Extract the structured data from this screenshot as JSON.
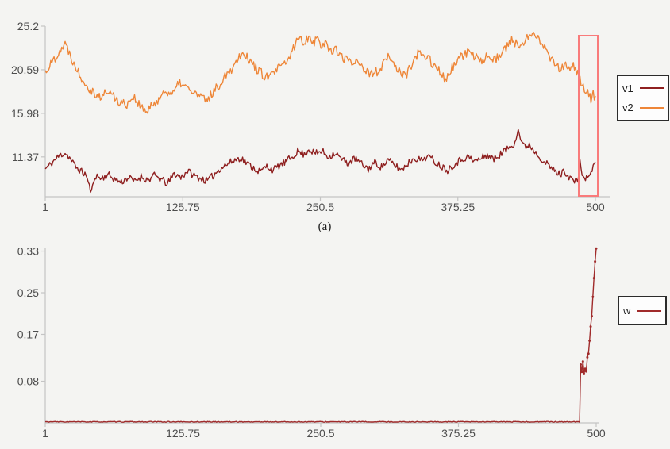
{
  "page": {
    "background_color": "#f4f4f2",
    "axis_color": "#c4c4c4",
    "tick_label_color": "#4d4d4d",
    "legend_border_color": "#2b2b2b",
    "legend_background_color": "#fdfdfd"
  },
  "chart_data": [
    {
      "id": "top-chart",
      "type": "line",
      "caption": "(a)",
      "xlim": [
        1,
        500
      ],
      "ylim": [
        7.16,
        25.2
      ],
      "x_ticks": [
        1,
        125.75,
        250.5,
        375.25,
        500
      ],
      "x_tick_labels": [
        "1",
        "125.75",
        "250.5",
        "375.25",
        "500"
      ],
      "y_ticks": [
        11.37,
        15.98,
        20.59,
        25.2
      ],
      "y_tick_labels": [
        "11.37",
        "15.98",
        "20.59",
        "25.2"
      ],
      "grid": false,
      "legend_position": "right-outside",
      "legend": [
        {
          "label": "v1",
          "color": "#8e1f1f"
        },
        {
          "label": "v2",
          "color": "#ee8638"
        }
      ],
      "highlight_box": {
        "x_start": 484,
        "x_end": 503,
        "y_top": 24.3,
        "y_bottom": 7.16,
        "color": "#f97b7b"
      },
      "series": [
        {
          "name": "v1",
          "color": "#8e1f1f",
          "noise_amplitude": 0.38,
          "seed": 11,
          "markers": false,
          "anchors": [
            [
              1,
              10.1
            ],
            [
              5,
              10.5
            ],
            [
              10,
              11.1
            ],
            [
              15,
              11.6
            ],
            [
              19,
              11.8
            ],
            [
              23,
              11.3
            ],
            [
              28,
              10.4
            ],
            [
              34,
              9.8
            ],
            [
              38,
              9.5
            ],
            [
              41,
              8.2
            ],
            [
              43,
              7.6
            ],
            [
              46,
              9.4
            ],
            [
              52,
              9.1
            ],
            [
              58,
              9.5
            ],
            [
              64,
              9.0
            ],
            [
              70,
              8.7
            ],
            [
              76,
              9.2
            ],
            [
              82,
              8.8
            ],
            [
              88,
              9.3
            ],
            [
              94,
              8.9
            ],
            [
              100,
              9.4
            ],
            [
              106,
              9.0
            ],
            [
              112,
              8.5
            ],
            [
              118,
              9.6
            ],
            [
              124,
              9.2
            ],
            [
              130,
              9.9
            ],
            [
              136,
              9.4
            ],
            [
              142,
              9.1
            ],
            [
              148,
              8.8
            ],
            [
              154,
              9.5
            ],
            [
              160,
              10.2
            ],
            [
              166,
              10.6
            ],
            [
              172,
              11.0
            ],
            [
              178,
              11.3
            ],
            [
              184,
              10.7
            ],
            [
              190,
              10.2
            ],
            [
              196,
              9.8
            ],
            [
              202,
              10.4
            ],
            [
              208,
              10.0
            ],
            [
              214,
              10.5
            ],
            [
              220,
              10.9
            ],
            [
              226,
              11.5
            ],
            [
              230,
              12.0
            ],
            [
              236,
              11.6
            ],
            [
              240,
              12.2
            ],
            [
              246,
              11.7
            ],
            [
              252,
              12.0
            ],
            [
              258,
              11.4
            ],
            [
              264,
              11.8
            ],
            [
              270,
              11.1
            ],
            [
              276,
              10.7
            ],
            [
              282,
              11.2
            ],
            [
              288,
              10.6
            ],
            [
              294,
              10.1
            ],
            [
              300,
              10.8
            ],
            [
              306,
              10.3
            ],
            [
              312,
              11.0
            ],
            [
              318,
              10.5
            ],
            [
              324,
              10.0
            ],
            [
              330,
              10.7
            ],
            [
              336,
              11.3
            ],
            [
              342,
              11.0
            ],
            [
              348,
              11.5
            ],
            [
              354,
              10.9
            ],
            [
              360,
              10.4
            ],
            [
              366,
              10.0
            ],
            [
              372,
              10.6
            ],
            [
              378,
              11.1
            ],
            [
              384,
              11.4
            ],
            [
              390,
              10.9
            ],
            [
              396,
              11.2
            ],
            [
              402,
              11.6
            ],
            [
              408,
              11.1
            ],
            [
              414,
              11.7
            ],
            [
              420,
              12.2
            ],
            [
              426,
              12.8
            ],
            [
              430,
              14.2
            ],
            [
              433,
              13.0
            ],
            [
              436,
              12.4
            ],
            [
              440,
              12.7
            ],
            [
              444,
              12.1
            ],
            [
              448,
              11.6
            ],
            [
              452,
              11.1
            ],
            [
              456,
              10.6
            ],
            [
              460,
              10.2
            ],
            [
              464,
              9.8
            ],
            [
              468,
              9.5
            ],
            [
              472,
              9.9
            ],
            [
              476,
              9.3
            ],
            [
              480,
              8.9
            ],
            [
              484,
              8.6
            ],
            [
              486,
              11.2
            ],
            [
              488,
              9.4
            ],
            [
              490,
              8.8
            ],
            [
              492,
              9.6
            ],
            [
              494,
              9.0
            ],
            [
              496,
              9.8
            ],
            [
              498,
              10.4
            ],
            [
              500,
              10.9
            ]
          ]
        },
        {
          "name": "v2",
          "color": "#ee8638",
          "noise_amplitude": 0.5,
          "seed": 22,
          "markers": false,
          "anchors": [
            [
              1,
              20.4
            ],
            [
              5,
              21.0
            ],
            [
              10,
              21.9
            ],
            [
              15,
              22.8
            ],
            [
              19,
              23.3
            ],
            [
              23,
              22.4
            ],
            [
              28,
              21.0
            ],
            [
              34,
              19.8
            ],
            [
              40,
              18.8
            ],
            [
              46,
              18.1
            ],
            [
              52,
              17.6
            ],
            [
              57,
              18.4
            ],
            [
              63,
              17.8
            ],
            [
              69,
              17.1
            ],
            [
              75,
              17.0
            ],
            [
              81,
              17.8
            ],
            [
              87,
              16.7
            ],
            [
              93,
              16.1
            ],
            [
              99,
              16.9
            ],
            [
              105,
              17.7
            ],
            [
              111,
              18.4
            ],
            [
              117,
              18.0
            ],
            [
              123,
              19.3
            ],
            [
              129,
              18.7
            ],
            [
              135,
              18.2
            ],
            [
              141,
              17.8
            ],
            [
              147,
              17.3
            ],
            [
              153,
              18.2
            ],
            [
              159,
              19.0
            ],
            [
              165,
              20.2
            ],
            [
              171,
              20.8
            ],
            [
              177,
              22.1
            ],
            [
              181,
              22.5
            ],
            [
              186,
              21.6
            ],
            [
              192,
              20.8
            ],
            [
              198,
              20.1
            ],
            [
              204,
              19.7
            ],
            [
              210,
              20.5
            ],
            [
              216,
              21.0
            ],
            [
              222,
              21.7
            ],
            [
              227,
              23.1
            ],
            [
              231,
              24.0
            ],
            [
              236,
              23.5
            ],
            [
              240,
              24.2
            ],
            [
              244,
              23.5
            ],
            [
              248,
              23.9
            ],
            [
              252,
              23.1
            ],
            [
              256,
              23.4
            ],
            [
              260,
              22.6
            ],
            [
              264,
              22.9
            ],
            [
              268,
              22.1
            ],
            [
              272,
              21.6
            ],
            [
              276,
              21.9
            ],
            [
              280,
              21.2
            ],
            [
              284,
              21.8
            ],
            [
              288,
              21.0
            ],
            [
              292,
              20.4
            ],
            [
              296,
              19.9
            ],
            [
              300,
              20.6
            ],
            [
              304,
              20.1
            ],
            [
              308,
              21.3
            ],
            [
              312,
              21.9
            ],
            [
              316,
              21.4
            ],
            [
              320,
              20.8
            ],
            [
              324,
              20.2
            ],
            [
              328,
              19.8
            ],
            [
              332,
              20.9
            ],
            [
              336,
              21.7
            ],
            [
              340,
              22.4
            ],
            [
              344,
              21.8
            ],
            [
              348,
              22.1
            ],
            [
              352,
              21.3
            ],
            [
              356,
              20.7
            ],
            [
              360,
              20.2
            ],
            [
              364,
              19.6
            ],
            [
              368,
              20.4
            ],
            [
              372,
              21.1
            ],
            [
              376,
              21.7
            ],
            [
              380,
              22.0
            ],
            [
              384,
              22.4
            ],
            [
              388,
              21.8
            ],
            [
              392,
              22.2
            ],
            [
              396,
              21.5
            ],
            [
              400,
              21.9
            ],
            [
              404,
              22.3
            ],
            [
              408,
              21.6
            ],
            [
              412,
              22.0
            ],
            [
              416,
              22.5
            ],
            [
              420,
              23.1
            ],
            [
              424,
              23.7
            ],
            [
              428,
              23.3
            ],
            [
              432,
              22.8
            ],
            [
              436,
              23.5
            ],
            [
              440,
              24.3
            ],
            [
              444,
              24.8
            ],
            [
              448,
              24.1
            ],
            [
              452,
              23.3
            ],
            [
              456,
              22.5
            ],
            [
              460,
              21.8
            ],
            [
              464,
              21.2
            ],
            [
              468,
              20.7
            ],
            [
              472,
              21.1
            ],
            [
              476,
              20.5
            ],
            [
              480,
              20.9
            ],
            [
              484,
              20.2
            ],
            [
              487,
              19.4
            ],
            [
              490,
              18.6
            ],
            [
              493,
              18.0
            ],
            [
              496,
              17.4
            ],
            [
              498,
              18.1
            ],
            [
              500,
              17.5
            ]
          ]
        }
      ]
    },
    {
      "id": "bottom-chart",
      "type": "line",
      "xlim": [
        1,
        500
      ],
      "ylim": [
        0,
        0.3354
      ],
      "x_ticks": [
        1,
        125.75,
        250.5,
        375.25,
        500
      ],
      "x_tick_labels": [
        "1",
        "125.75",
        "250.5",
        "375.25",
        "500"
      ],
      "y_ticks": [
        0.08,
        0.17,
        0.25,
        0.33
      ],
      "y_tick_labels": [
        "0.08",
        "0.17",
        "0.25",
        "0.33"
      ],
      "grid": false,
      "legend_position": "right-outside",
      "legend": [
        {
          "label": "w",
          "color": "#a02b2b"
        }
      ],
      "series": [
        {
          "name": "w",
          "color": "#a02b2b",
          "noise_amplitude": 0.0008,
          "seed": 33,
          "markers": true,
          "anchors": [
            [
              1,
              0.002
            ],
            [
              485,
              0.002
            ],
            [
              486,
              0.112
            ],
            [
              487,
              0.098
            ],
            [
              488,
              0.118
            ],
            [
              489,
              0.094
            ],
            [
              490,
              0.104
            ],
            [
              491,
              0.099
            ],
            [
              492,
              0.126
            ],
            [
              493,
              0.133
            ],
            [
              494,
              0.158
            ],
            [
              495,
              0.185
            ],
            [
              496,
              0.205
            ],
            [
              497,
              0.242
            ],
            [
              498,
              0.278
            ],
            [
              499,
              0.31
            ],
            [
              500,
              0.335
            ]
          ]
        }
      ]
    }
  ]
}
